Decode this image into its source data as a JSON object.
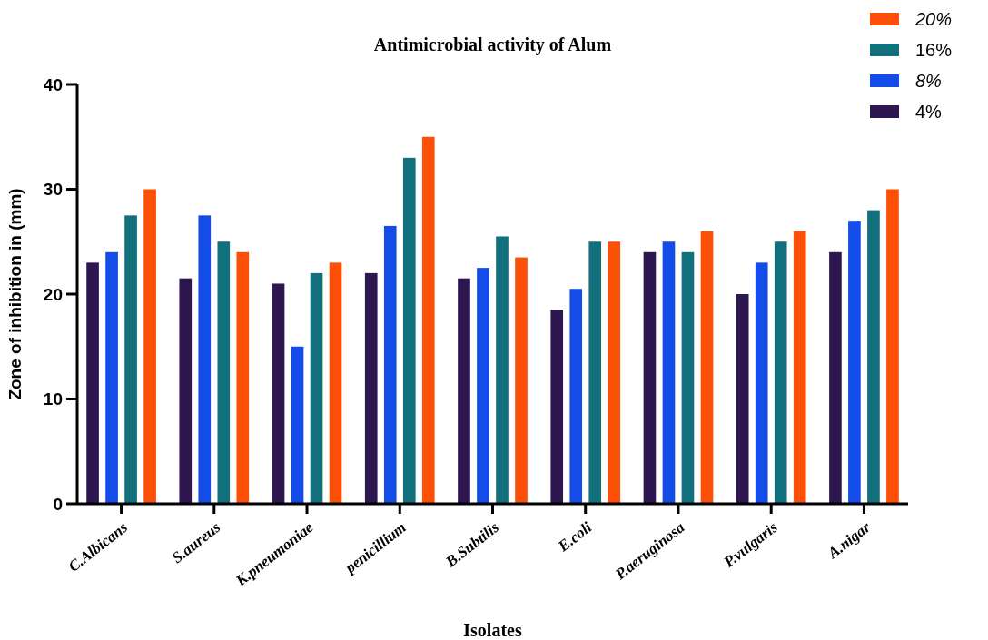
{
  "chart_data": {
    "type": "bar",
    "title": "Antimicrobial activity of Alum",
    "xlabel": "Isolates",
    "ylabel": "Zone of inhibition in (mm)",
    "categories": [
      "C.Albicans",
      "S.aureus",
      "K.pneumoniae",
      "penicillium",
      "B.Subtilis",
      "E.coli",
      "P.aeruginosa",
      "P.vulgaris",
      "A.nigar"
    ],
    "series": [
      {
        "name": "4%",
        "color": "#2e1650",
        "values": [
          23,
          21.5,
          21,
          22,
          21.5,
          18.5,
          24,
          20,
          24
        ]
      },
      {
        "name": "8%",
        "color": "#134ce6",
        "values": [
          24,
          27.5,
          15,
          26.5,
          22.5,
          20.5,
          25,
          23,
          27
        ]
      },
      {
        "name": "16%",
        "color": "#11707c",
        "values": [
          27.5,
          25,
          22,
          33,
          25.5,
          25,
          24,
          25,
          28
        ]
      },
      {
        "name": "20%",
        "color": "#fc4f08",
        "values": [
          30,
          24,
          23,
          35,
          23.5,
          25,
          26,
          26,
          30
        ]
      }
    ],
    "ylim": [
      0,
      40
    ],
    "yticks": [
      0,
      10,
      20,
      30,
      40
    ],
    "legend": "top right",
    "grid": false
  }
}
